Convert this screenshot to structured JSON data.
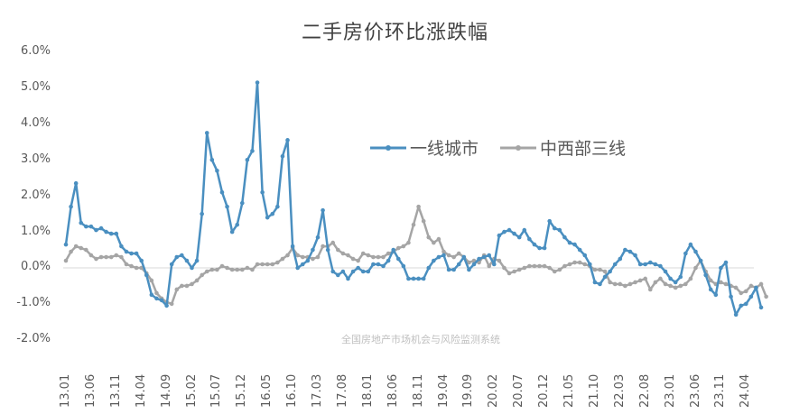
{
  "chart_data": {
    "type": "line",
    "title": "二手房价环比涨跌幅",
    "xlabel": "",
    "ylabel": "",
    "ylim": [
      -0.02,
      0.06
    ],
    "y_ticks": [
      "6.0%",
      "5.0%",
      "4.0%",
      "3.0%",
      "2.0%",
      "1.0%",
      "0.0%",
      "-1.0%",
      "-2.0%"
    ],
    "x_tick_labels": [
      "13.01",
      "13.06",
      "13.11",
      "14.04",
      "14.09",
      "15.02",
      "15.07",
      "15.12",
      "16.05",
      "16.10",
      "17.03",
      "17.08",
      "18.01",
      "18.06",
      "18.11",
      "19.04",
      "19.09",
      "20.02",
      "20.07",
      "20.12",
      "21.05",
      "21.10",
      "22.03",
      "22.08",
      "23.01",
      "23.06",
      "23.11",
      "24.04"
    ],
    "legend_position": "upper-right-center",
    "grid": false,
    "watermark": "全国房地产市场机会与风险监测系统",
    "series": [
      {
        "name": "一线城市",
        "color": "#4a8fc0",
        "values_pct": [
          0.65,
          1.7,
          2.35,
          1.25,
          1.15,
          1.15,
          1.05,
          1.1,
          1.0,
          0.95,
          0.95,
          0.6,
          0.45,
          0.4,
          0.4,
          0.2,
          -0.2,
          -0.75,
          -0.85,
          -0.9,
          -1.05,
          0.1,
          0.3,
          0.35,
          0.2,
          0.0,
          0.2,
          1.5,
          3.75,
          3.0,
          2.7,
          2.1,
          1.7,
          1.0,
          1.2,
          1.8,
          3.0,
          3.25,
          5.15,
          2.1,
          1.4,
          1.5,
          1.7,
          3.1,
          3.55,
          0.6,
          0.0,
          0.1,
          0.2,
          0.5,
          0.85,
          1.6,
          0.5,
          -0.1,
          -0.2,
          -0.1,
          -0.3,
          -0.1,
          0.0,
          -0.1,
          -0.1,
          0.1,
          0.1,
          0.05,
          0.2,
          0.5,
          0.25,
          0.05,
          -0.3,
          -0.3,
          -0.3,
          -0.3,
          0.0,
          0.2,
          0.3,
          0.35,
          -0.05,
          -0.05,
          0.1,
          0.3,
          -0.05,
          0.1,
          0.25,
          0.3,
          0.35,
          0.1,
          0.9,
          1.0,
          1.05,
          0.95,
          0.85,
          1.05,
          0.8,
          0.65,
          0.55,
          0.55,
          1.3,
          1.1,
          1.05,
          0.85,
          0.7,
          0.65,
          0.5,
          0.35,
          0.1,
          -0.4,
          -0.45,
          -0.25,
          -0.1,
          0.1,
          0.25,
          0.5,
          0.45,
          0.35,
          0.1,
          0.1,
          0.15,
          0.1,
          0.05,
          -0.1,
          -0.3,
          -0.4,
          -0.25,
          0.4,
          0.65,
          0.45,
          0.2,
          -0.2,
          -0.6,
          -0.75,
          0.0,
          0.15,
          -0.8,
          -1.3,
          -1.05,
          -1.0,
          -0.8,
          -0.55,
          -1.1
        ]
      },
      {
        "name": "中西部三线",
        "color": "#a5a5a5",
        "values_pct": [
          0.2,
          0.45,
          0.6,
          0.55,
          0.5,
          0.35,
          0.25,
          0.3,
          0.3,
          0.3,
          0.35,
          0.3,
          0.1,
          0.05,
          0.0,
          0.0,
          -0.15,
          -0.35,
          -0.7,
          -0.85,
          -0.95,
          -1.0,
          -0.6,
          -0.5,
          -0.5,
          -0.45,
          -0.35,
          -0.2,
          -0.1,
          -0.05,
          -0.05,
          0.05,
          0.0,
          -0.05,
          -0.05,
          -0.05,
          0.0,
          -0.05,
          0.1,
          0.1,
          0.1,
          0.1,
          0.15,
          0.25,
          0.35,
          0.55,
          0.35,
          0.3,
          0.3,
          0.25,
          0.3,
          0.6,
          0.6,
          0.7,
          0.5,
          0.4,
          0.35,
          0.25,
          0.2,
          0.4,
          0.35,
          0.3,
          0.3,
          0.3,
          0.4,
          0.45,
          0.55,
          0.6,
          0.7,
          1.2,
          1.7,
          1.3,
          0.85,
          0.7,
          0.8,
          0.45,
          0.35,
          0.3,
          0.4,
          0.3,
          0.15,
          0.2,
          0.15,
          0.35,
          0.05,
          0.25,
          0.2,
          0.0,
          -0.15,
          -0.1,
          -0.05,
          0.0,
          0.05,
          0.05,
          0.05,
          0.05,
          0.0,
          -0.1,
          -0.05,
          0.05,
          0.1,
          0.15,
          0.15,
          0.1,
          0.05,
          -0.05,
          -0.05,
          -0.1,
          -0.4,
          -0.45,
          -0.45,
          -0.5,
          -0.45,
          -0.4,
          -0.35,
          -0.3,
          -0.6,
          -0.4,
          -0.3,
          -0.45,
          -0.5,
          -0.55,
          -0.5,
          -0.45,
          -0.3,
          0.0,
          0.2,
          -0.1,
          -0.35,
          -0.45,
          -0.4,
          -0.45,
          -0.5,
          -0.55,
          -0.7,
          -0.65,
          -0.5,
          -0.55,
          -0.45,
          -0.8
        ]
      }
    ]
  }
}
